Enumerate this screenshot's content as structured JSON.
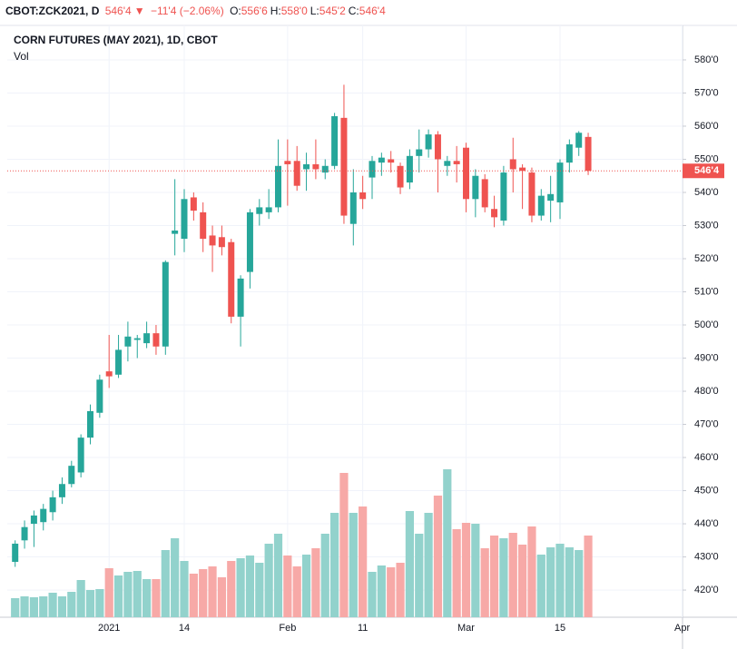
{
  "header": {
    "symbol": "CBOT:ZCK2021, D",
    "last": "546'4",
    "arrow": "▼",
    "change": "−11'4 (−2.06%)",
    "ohlc": [
      {
        "label": "O:",
        "value": "556'6"
      },
      {
        "label": "H:",
        "value": "558'0"
      },
      {
        "label": "L:",
        "value": "545'2"
      },
      {
        "label": "C:",
        "value": "546'4"
      }
    ]
  },
  "chart_data": {
    "type": "candlestick",
    "title": "CORN FUTURES (MAY 2021), 1D, CBOT",
    "volume_label": "Vol",
    "categories": [
      null,
      null,
      null,
      null,
      null,
      null,
      null,
      null,
      null,
      null,
      "2021",
      null,
      null,
      null,
      null,
      null,
      null,
      null,
      "14",
      null,
      null,
      null,
      null,
      null,
      null,
      null,
      null,
      null,
      null,
      "Feb",
      null,
      null,
      null,
      null,
      null,
      null,
      null,
      "11",
      null,
      null,
      null,
      null,
      null,
      null,
      null,
      null,
      null,
      null,
      "Mar",
      null,
      null,
      null,
      null,
      null,
      null,
      null,
      null,
      null,
      "15",
      null,
      null,
      null,
      null,
      null,
      null,
      null,
      null,
      null,
      null,
      null,
      null,
      "Apr"
    ],
    "open": [
      428.5,
      435,
      440,
      440.5,
      443.5,
      448,
      452,
      455.5,
      466,
      473.5,
      486,
      485,
      493.5,
      495.5,
      494.5,
      497.5,
      493.5,
      527.5,
      526,
      538.5,
      534,
      527,
      526.5,
      525,
      502.5,
      516,
      533.5,
      534,
      535.5,
      549.5,
      549.5,
      547,
      548.5,
      546,
      548,
      562.5,
      530.5,
      540,
      544.5,
      549,
      550,
      548,
      543,
      551,
      553,
      557.5,
      548,
      549.5,
      553.5,
      538,
      544,
      535,
      531.5,
      550,
      547.5,
      546,
      533,
      537.5,
      537,
      549,
      553.5,
      556.75,
      null,
      null,
      null,
      null,
      null,
      null,
      null,
      null,
      null,
      null
    ],
    "high": [
      435,
      441,
      444,
      446,
      450,
      454,
      459,
      467,
      476,
      485,
      497,
      497,
      501,
      497,
      501,
      500,
      519.5,
      544,
      541,
      540,
      537,
      530,
      530,
      526,
      515,
      535,
      538,
      541,
      556,
      556,
      554,
      552,
      556,
      550,
      564,
      572.5,
      547,
      545,
      551,
      552,
      552.5,
      549,
      553,
      559,
      559,
      558.5,
      551,
      554,
      555,
      547,
      545.5,
      539,
      548,
      556.5,
      548.5,
      547.5,
      541,
      545,
      550,
      556,
      558.5,
      558,
      null,
      null,
      null,
      null,
      null,
      null,
      null,
      null,
      null,
      null
    ],
    "low": [
      427,
      432.5,
      433,
      438,
      441,
      446,
      451,
      454,
      464,
      472,
      481,
      484,
      489,
      490,
      493,
      491,
      491,
      521,
      522,
      531.5,
      522,
      516,
      521,
      500.5,
      493.5,
      511,
      530,
      532,
      534,
      536,
      540.5,
      540.5,
      544,
      544,
      547,
      530.5,
      524,
      535,
      538,
      545,
      546,
      539.5,
      541,
      546,
      550.5,
      540,
      545,
      543,
      534,
      532.5,
      534,
      529.5,
      530,
      540,
      535,
      531,
      531.5,
      531,
      532,
      546,
      551,
      545.25,
      null,
      null,
      null,
      null,
      null,
      null,
      null,
      null,
      null,
      null
    ],
    "close": [
      434,
      439,
      442.5,
      444.5,
      448,
      452,
      457.5,
      466,
      474,
      483.5,
      484.5,
      492.5,
      496.5,
      496,
      497.5,
      493.5,
      519,
      528.5,
      538,
      534.5,
      526,
      524,
      523.5,
      502.5,
      514,
      534,
      535.5,
      535.5,
      548,
      548.5,
      542,
      548.5,
      547,
      548,
      563,
      533,
      540,
      538,
      549.5,
      550.5,
      549,
      541.5,
      551,
      553,
      557.5,
      550,
      549.5,
      548.5,
      538,
      545,
      535.5,
      532.5,
      546,
      547,
      546.5,
      533,
      539,
      539.5,
      549,
      554.5,
      558,
      546.5,
      null,
      null,
      null,
      null,
      null,
      null,
      null,
      null,
      null,
      null
    ],
    "volume": [
      21,
      23,
      22,
      23,
      27,
      23,
      28,
      41,
      30,
      31,
      54,
      46,
      50,
      51,
      42,
      42,
      74,
      87,
      62,
      48,
      53,
      56,
      44,
      62,
      65,
      68,
      60,
      81,
      92,
      68,
      56,
      69,
      76,
      92,
      115,
      159,
      115,
      122,
      50,
      57,
      55,
      60,
      117,
      92,
      115,
      134,
      163,
      97,
      104,
      103,
      76,
      90,
      87,
      93,
      80,
      100,
      69,
      77,
      81,
      77,
      74,
      90,
      null,
      null,
      null,
      null,
      null,
      null,
      null,
      null,
      null,
      null
    ],
    "up_color": "#26a69a",
    "down_color": "#ef5350",
    "volume_up_color": "#92d2cc",
    "volume_down_color": "#f7a9a7",
    "ylim": [
      411.8,
      590.4
    ],
    "volume_ylim": [
      0,
      220
    ],
    "yticks": [
      {
        "value": 420,
        "label": "420'0"
      },
      {
        "value": 430,
        "label": "430'0"
      },
      {
        "value": 440,
        "label": "440'0"
      },
      {
        "value": 450,
        "label": "450'0"
      },
      {
        "value": 460,
        "label": "460'0"
      },
      {
        "value": 470,
        "label": "470'0"
      },
      {
        "value": 480,
        "label": "480'0"
      },
      {
        "value": 490,
        "label": "490'0"
      },
      {
        "value": 500,
        "label": "500'0"
      },
      {
        "value": 510,
        "label": "510'0"
      },
      {
        "value": 520,
        "label": "520'0"
      },
      {
        "value": 530,
        "label": "530'0"
      },
      {
        "value": 540,
        "label": "540'0"
      },
      {
        "value": 550,
        "label": "550'0"
      },
      {
        "value": 560,
        "label": "560'0"
      },
      {
        "value": 570,
        "label": "570'0"
      },
      {
        "value": 580,
        "label": "580'0"
      }
    ],
    "grid": true,
    "last_price": {
      "value": 546.5,
      "label": "546'4"
    }
  }
}
